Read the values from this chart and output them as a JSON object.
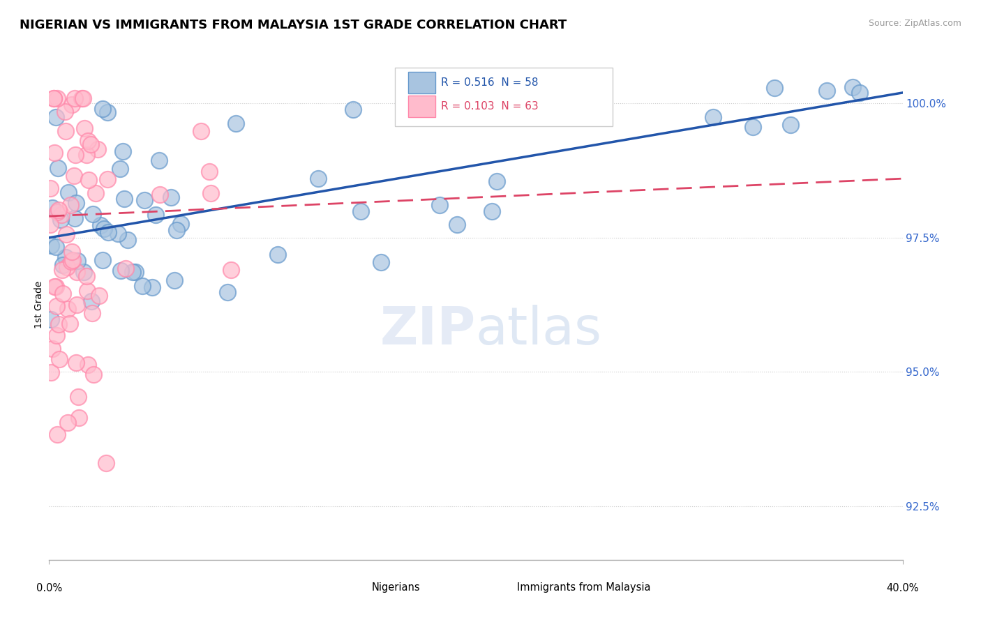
{
  "title": "NIGERIAN VS IMMIGRANTS FROM MALAYSIA 1ST GRADE CORRELATION CHART",
  "source": "Source: ZipAtlas.com",
  "ylabel": "1st Grade",
  "y_ticks": [
    92.5,
    95.0,
    97.5,
    100.0
  ],
  "y_tick_labels": [
    "92.5%",
    "95.0%",
    "97.5%",
    "100.0%"
  ],
  "x_min": 0.0,
  "x_max": 40.0,
  "y_min": 91.5,
  "y_max": 101.0,
  "blue_R": 0.516,
  "blue_N": 58,
  "pink_R": 0.103,
  "pink_N": 63,
  "blue_face_color": "#A8C4E0",
  "blue_edge_color": "#6699CC",
  "pink_face_color": "#FFBBCC",
  "pink_edge_color": "#FF88AA",
  "blue_line_color": "#2255AA",
  "pink_line_color": "#DD4466",
  "title_fontsize": 13,
  "legend_label_blue": "Nigerians",
  "legend_label_pink": "Immigrants from Malaysia"
}
